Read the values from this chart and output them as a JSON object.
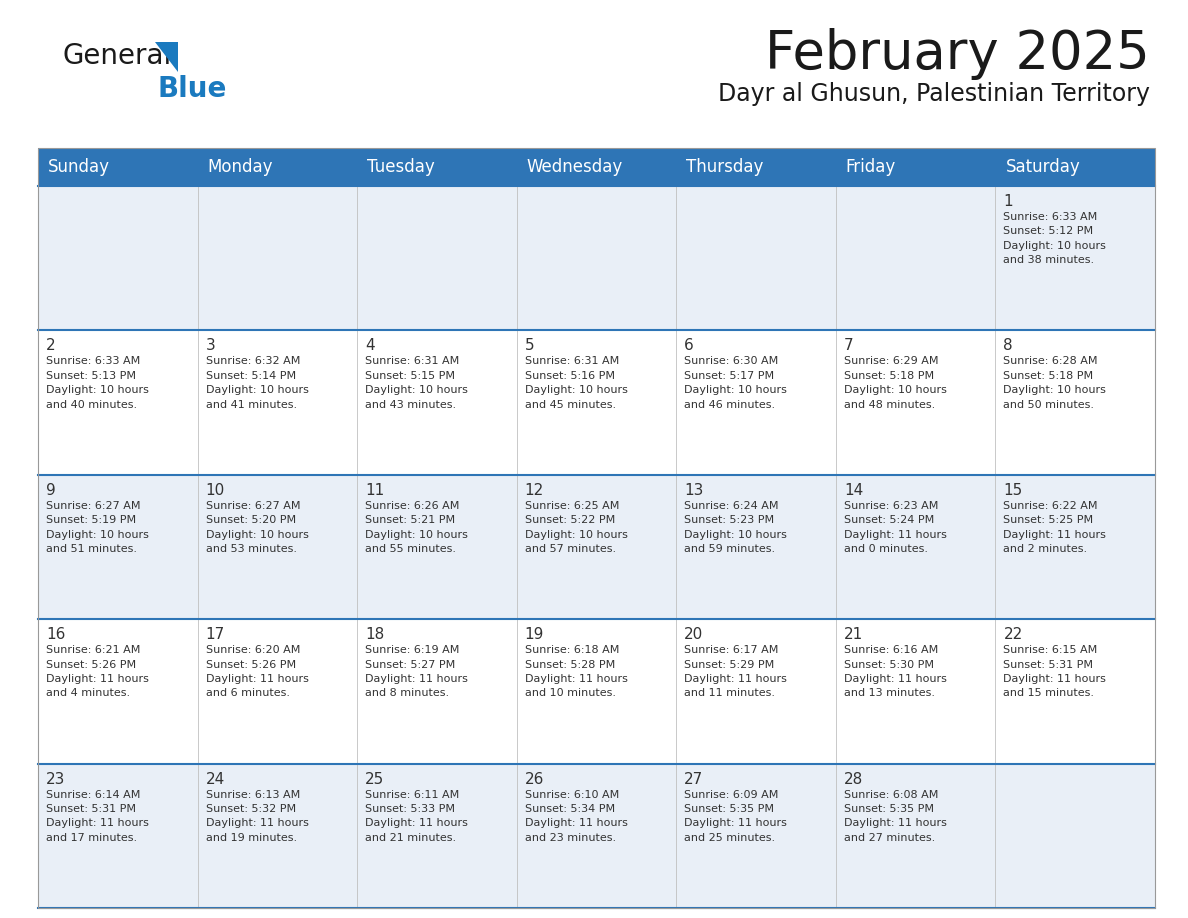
{
  "title": "February 2025",
  "subtitle": "Dayr al Ghusun, Palestinian Territory",
  "header_color": "#2e75b6",
  "header_text_color": "#ffffff",
  "row_separator_color": "#2e75b6",
  "background_color": "#ffffff",
  "cell_bg_light": "#e9eff7",
  "cell_bg_white": "#ffffff",
  "text_color": "#333333",
  "days_of_week": [
    "Sunday",
    "Monday",
    "Tuesday",
    "Wednesday",
    "Thursday",
    "Friday",
    "Saturday"
  ],
  "weeks": [
    [
      {
        "day": "",
        "info": ""
      },
      {
        "day": "",
        "info": ""
      },
      {
        "day": "",
        "info": ""
      },
      {
        "day": "",
        "info": ""
      },
      {
        "day": "",
        "info": ""
      },
      {
        "day": "",
        "info": ""
      },
      {
        "day": "1",
        "info": "Sunrise: 6:33 AM\nSunset: 5:12 PM\nDaylight: 10 hours\nand 38 minutes."
      }
    ],
    [
      {
        "day": "2",
        "info": "Sunrise: 6:33 AM\nSunset: 5:13 PM\nDaylight: 10 hours\nand 40 minutes."
      },
      {
        "day": "3",
        "info": "Sunrise: 6:32 AM\nSunset: 5:14 PM\nDaylight: 10 hours\nand 41 minutes."
      },
      {
        "day": "4",
        "info": "Sunrise: 6:31 AM\nSunset: 5:15 PM\nDaylight: 10 hours\nand 43 minutes."
      },
      {
        "day": "5",
        "info": "Sunrise: 6:31 AM\nSunset: 5:16 PM\nDaylight: 10 hours\nand 45 minutes."
      },
      {
        "day": "6",
        "info": "Sunrise: 6:30 AM\nSunset: 5:17 PM\nDaylight: 10 hours\nand 46 minutes."
      },
      {
        "day": "7",
        "info": "Sunrise: 6:29 AM\nSunset: 5:18 PM\nDaylight: 10 hours\nand 48 minutes."
      },
      {
        "day": "8",
        "info": "Sunrise: 6:28 AM\nSunset: 5:18 PM\nDaylight: 10 hours\nand 50 minutes."
      }
    ],
    [
      {
        "day": "9",
        "info": "Sunrise: 6:27 AM\nSunset: 5:19 PM\nDaylight: 10 hours\nand 51 minutes."
      },
      {
        "day": "10",
        "info": "Sunrise: 6:27 AM\nSunset: 5:20 PM\nDaylight: 10 hours\nand 53 minutes."
      },
      {
        "day": "11",
        "info": "Sunrise: 6:26 AM\nSunset: 5:21 PM\nDaylight: 10 hours\nand 55 minutes."
      },
      {
        "day": "12",
        "info": "Sunrise: 6:25 AM\nSunset: 5:22 PM\nDaylight: 10 hours\nand 57 minutes."
      },
      {
        "day": "13",
        "info": "Sunrise: 6:24 AM\nSunset: 5:23 PM\nDaylight: 10 hours\nand 59 minutes."
      },
      {
        "day": "14",
        "info": "Sunrise: 6:23 AM\nSunset: 5:24 PM\nDaylight: 11 hours\nand 0 minutes."
      },
      {
        "day": "15",
        "info": "Sunrise: 6:22 AM\nSunset: 5:25 PM\nDaylight: 11 hours\nand 2 minutes."
      }
    ],
    [
      {
        "day": "16",
        "info": "Sunrise: 6:21 AM\nSunset: 5:26 PM\nDaylight: 11 hours\nand 4 minutes."
      },
      {
        "day": "17",
        "info": "Sunrise: 6:20 AM\nSunset: 5:26 PM\nDaylight: 11 hours\nand 6 minutes."
      },
      {
        "day": "18",
        "info": "Sunrise: 6:19 AM\nSunset: 5:27 PM\nDaylight: 11 hours\nand 8 minutes."
      },
      {
        "day": "19",
        "info": "Sunrise: 6:18 AM\nSunset: 5:28 PM\nDaylight: 11 hours\nand 10 minutes."
      },
      {
        "day": "20",
        "info": "Sunrise: 6:17 AM\nSunset: 5:29 PM\nDaylight: 11 hours\nand 11 minutes."
      },
      {
        "day": "21",
        "info": "Sunrise: 6:16 AM\nSunset: 5:30 PM\nDaylight: 11 hours\nand 13 minutes."
      },
      {
        "day": "22",
        "info": "Sunrise: 6:15 AM\nSunset: 5:31 PM\nDaylight: 11 hours\nand 15 minutes."
      }
    ],
    [
      {
        "day": "23",
        "info": "Sunrise: 6:14 AM\nSunset: 5:31 PM\nDaylight: 11 hours\nand 17 minutes."
      },
      {
        "day": "24",
        "info": "Sunrise: 6:13 AM\nSunset: 5:32 PM\nDaylight: 11 hours\nand 19 minutes."
      },
      {
        "day": "25",
        "info": "Sunrise: 6:11 AM\nSunset: 5:33 PM\nDaylight: 11 hours\nand 21 minutes."
      },
      {
        "day": "26",
        "info": "Sunrise: 6:10 AM\nSunset: 5:34 PM\nDaylight: 11 hours\nand 23 minutes."
      },
      {
        "day": "27",
        "info": "Sunrise: 6:09 AM\nSunset: 5:35 PM\nDaylight: 11 hours\nand 25 minutes."
      },
      {
        "day": "28",
        "info": "Sunrise: 6:08 AM\nSunset: 5:35 PM\nDaylight: 11 hours\nand 27 minutes."
      },
      {
        "day": "",
        "info": ""
      }
    ]
  ],
  "logo_color_general": "#1a1a1a",
  "logo_color_blue": "#1a7abf",
  "logo_triangle_color": "#1a7abf",
  "title_fontsize": 38,
  "subtitle_fontsize": 17,
  "header_fontsize": 12,
  "day_number_fontsize": 11,
  "info_fontsize": 8
}
